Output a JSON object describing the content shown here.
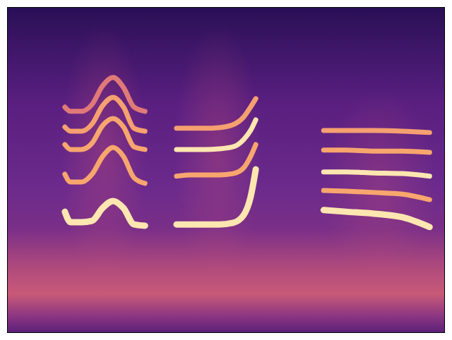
{
  "chart_data": {
    "type": "line",
    "xlim": [
      0,
      100
    ],
    "ylim": [
      0,
      100
    ],
    "grid": false,
    "tick_labels": false,
    "series": [
      {
        "color": "#fde6b0",
        "x": [
          13.2,
          14.5,
          17.0,
          19.4,
          21.8,
          24.2,
          26.6,
          29.0,
          31.5
        ],
        "values": [
          37.2,
          34.0,
          34.0,
          34.4,
          38.3,
          40.5,
          38.3,
          33.3,
          32.9
        ]
      },
      {
        "color": "#f7a66e",
        "x": [
          13.2,
          14.5,
          17.0,
          19.4,
          21.8,
          24.2,
          26.6,
          29.0,
          31.5
        ],
        "values": [
          48.7,
          46.3,
          46.3,
          48.7,
          54.1,
          56.9,
          54.1,
          47.6,
          45.9
        ]
      },
      {
        "color": "#f7a66e",
        "x": [
          13.2,
          14.5,
          17.0,
          19.4,
          21.8,
          24.2,
          26.6,
          29.0,
          31.5
        ],
        "values": [
          57.8,
          56.3,
          56.3,
          58.2,
          63.6,
          65.8,
          63.2,
          57.1,
          56.3
        ]
      },
      {
        "color": "#f5a070",
        "x": [
          13.2,
          14.5,
          17.0,
          19.4,
          21.8,
          24.2,
          26.6,
          29.0,
          31.5
        ],
        "values": [
          63.2,
          61.9,
          61.9,
          64.1,
          69.7,
          72.3,
          69.3,
          62.8,
          61.9
        ]
      },
      {
        "color": "#e07a78",
        "x": [
          13.2,
          14.5,
          17.0,
          19.4,
          21.8,
          24.2,
          26.6,
          29.0,
          31.5
        ],
        "values": [
          69.3,
          68.0,
          68.0,
          70.1,
          75.8,
          78.4,
          75.3,
          69.3,
          68.0
        ]
      },
      {
        "color": "#fde6b0",
        "x": [
          38.7,
          41.9,
          45.2,
          48.4,
          51.6,
          54.0,
          55.6,
          56.8
        ],
        "values": [
          33.3,
          33.3,
          33.3,
          33.3,
          33.8,
          36.1,
          41.6,
          50.2
        ]
      },
      {
        "color": "#f7a66e",
        "x": [
          38.7,
          41.9,
          45.2,
          48.4,
          51.6,
          54.0,
          55.6,
          56.8
        ],
        "values": [
          48.1,
          48.5,
          48.5,
          48.5,
          48.9,
          50.6,
          54.1,
          57.8
        ]
      },
      {
        "color": "#fde6b0",
        "x": [
          38.7,
          41.9,
          45.2,
          48.4,
          51.6,
          54.0,
          55.6,
          56.8
        ],
        "values": [
          56.3,
          56.3,
          56.3,
          56.5,
          57.1,
          59.3,
          62.1,
          65.4
        ]
      },
      {
        "color": "#f5a070",
        "x": [
          38.7,
          41.9,
          45.2,
          48.4,
          51.6,
          54.0,
          55.6,
          56.8
        ],
        "values": [
          62.8,
          62.8,
          62.8,
          63.0,
          63.9,
          66.2,
          69.3,
          71.9
        ]
      },
      {
        "color": "#fde6b0",
        "x": [
          72.3,
          77.4,
          83.9,
          90.3,
          96.5
        ],
        "values": [
          37.7,
          37.2,
          36.6,
          35.5,
          32.5
        ]
      },
      {
        "color": "#f7a66e",
        "x": [
          72.3,
          77.4,
          83.9,
          90.3,
          96.5
        ],
        "values": [
          43.7,
          43.5,
          43.1,
          42.6,
          40.9
        ]
      },
      {
        "color": "#fde6b0",
        "x": [
          72.3,
          77.4,
          83.9,
          90.3,
          96.5
        ],
        "values": [
          49.4,
          49.4,
          49.1,
          48.9,
          48.1
        ]
      },
      {
        "color": "#f7a66e",
        "x": [
          72.3,
          77.4,
          83.9,
          90.3,
          96.5
        ],
        "values": [
          56.1,
          56.1,
          55.8,
          55.8,
          55.4
        ]
      },
      {
        "color": "#f5a070",
        "x": [
          72.3,
          77.4,
          83.9,
          90.3,
          96.5
        ],
        "values": [
          62.1,
          62.1,
          62.1,
          61.9,
          61.5
        ]
      }
    ]
  }
}
